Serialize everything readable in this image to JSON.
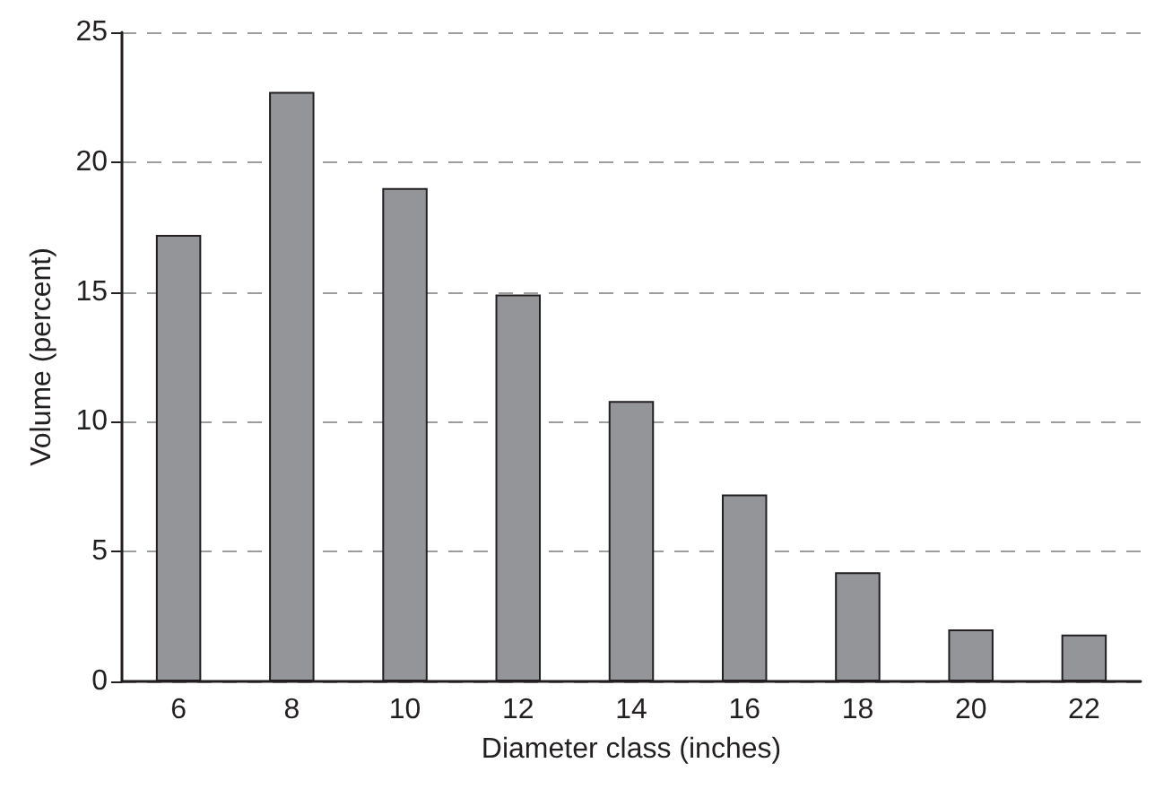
{
  "chart_data": {
    "type": "bar",
    "xlabel": "Diameter class (inches)",
    "ylabel": "Volume (percent)",
    "categories": [
      "6",
      "8",
      "10",
      "12",
      "14",
      "16",
      "18",
      "20",
      "22"
    ],
    "values": [
      17.2,
      22.7,
      19.0,
      14.9,
      10.8,
      7.2,
      4.2,
      2.0,
      1.8
    ],
    "color": "#939598",
    "ylim": [
      0,
      25
    ],
    "yticks": [
      0,
      5,
      10,
      15,
      20,
      25
    ],
    "grid": "y"
  }
}
